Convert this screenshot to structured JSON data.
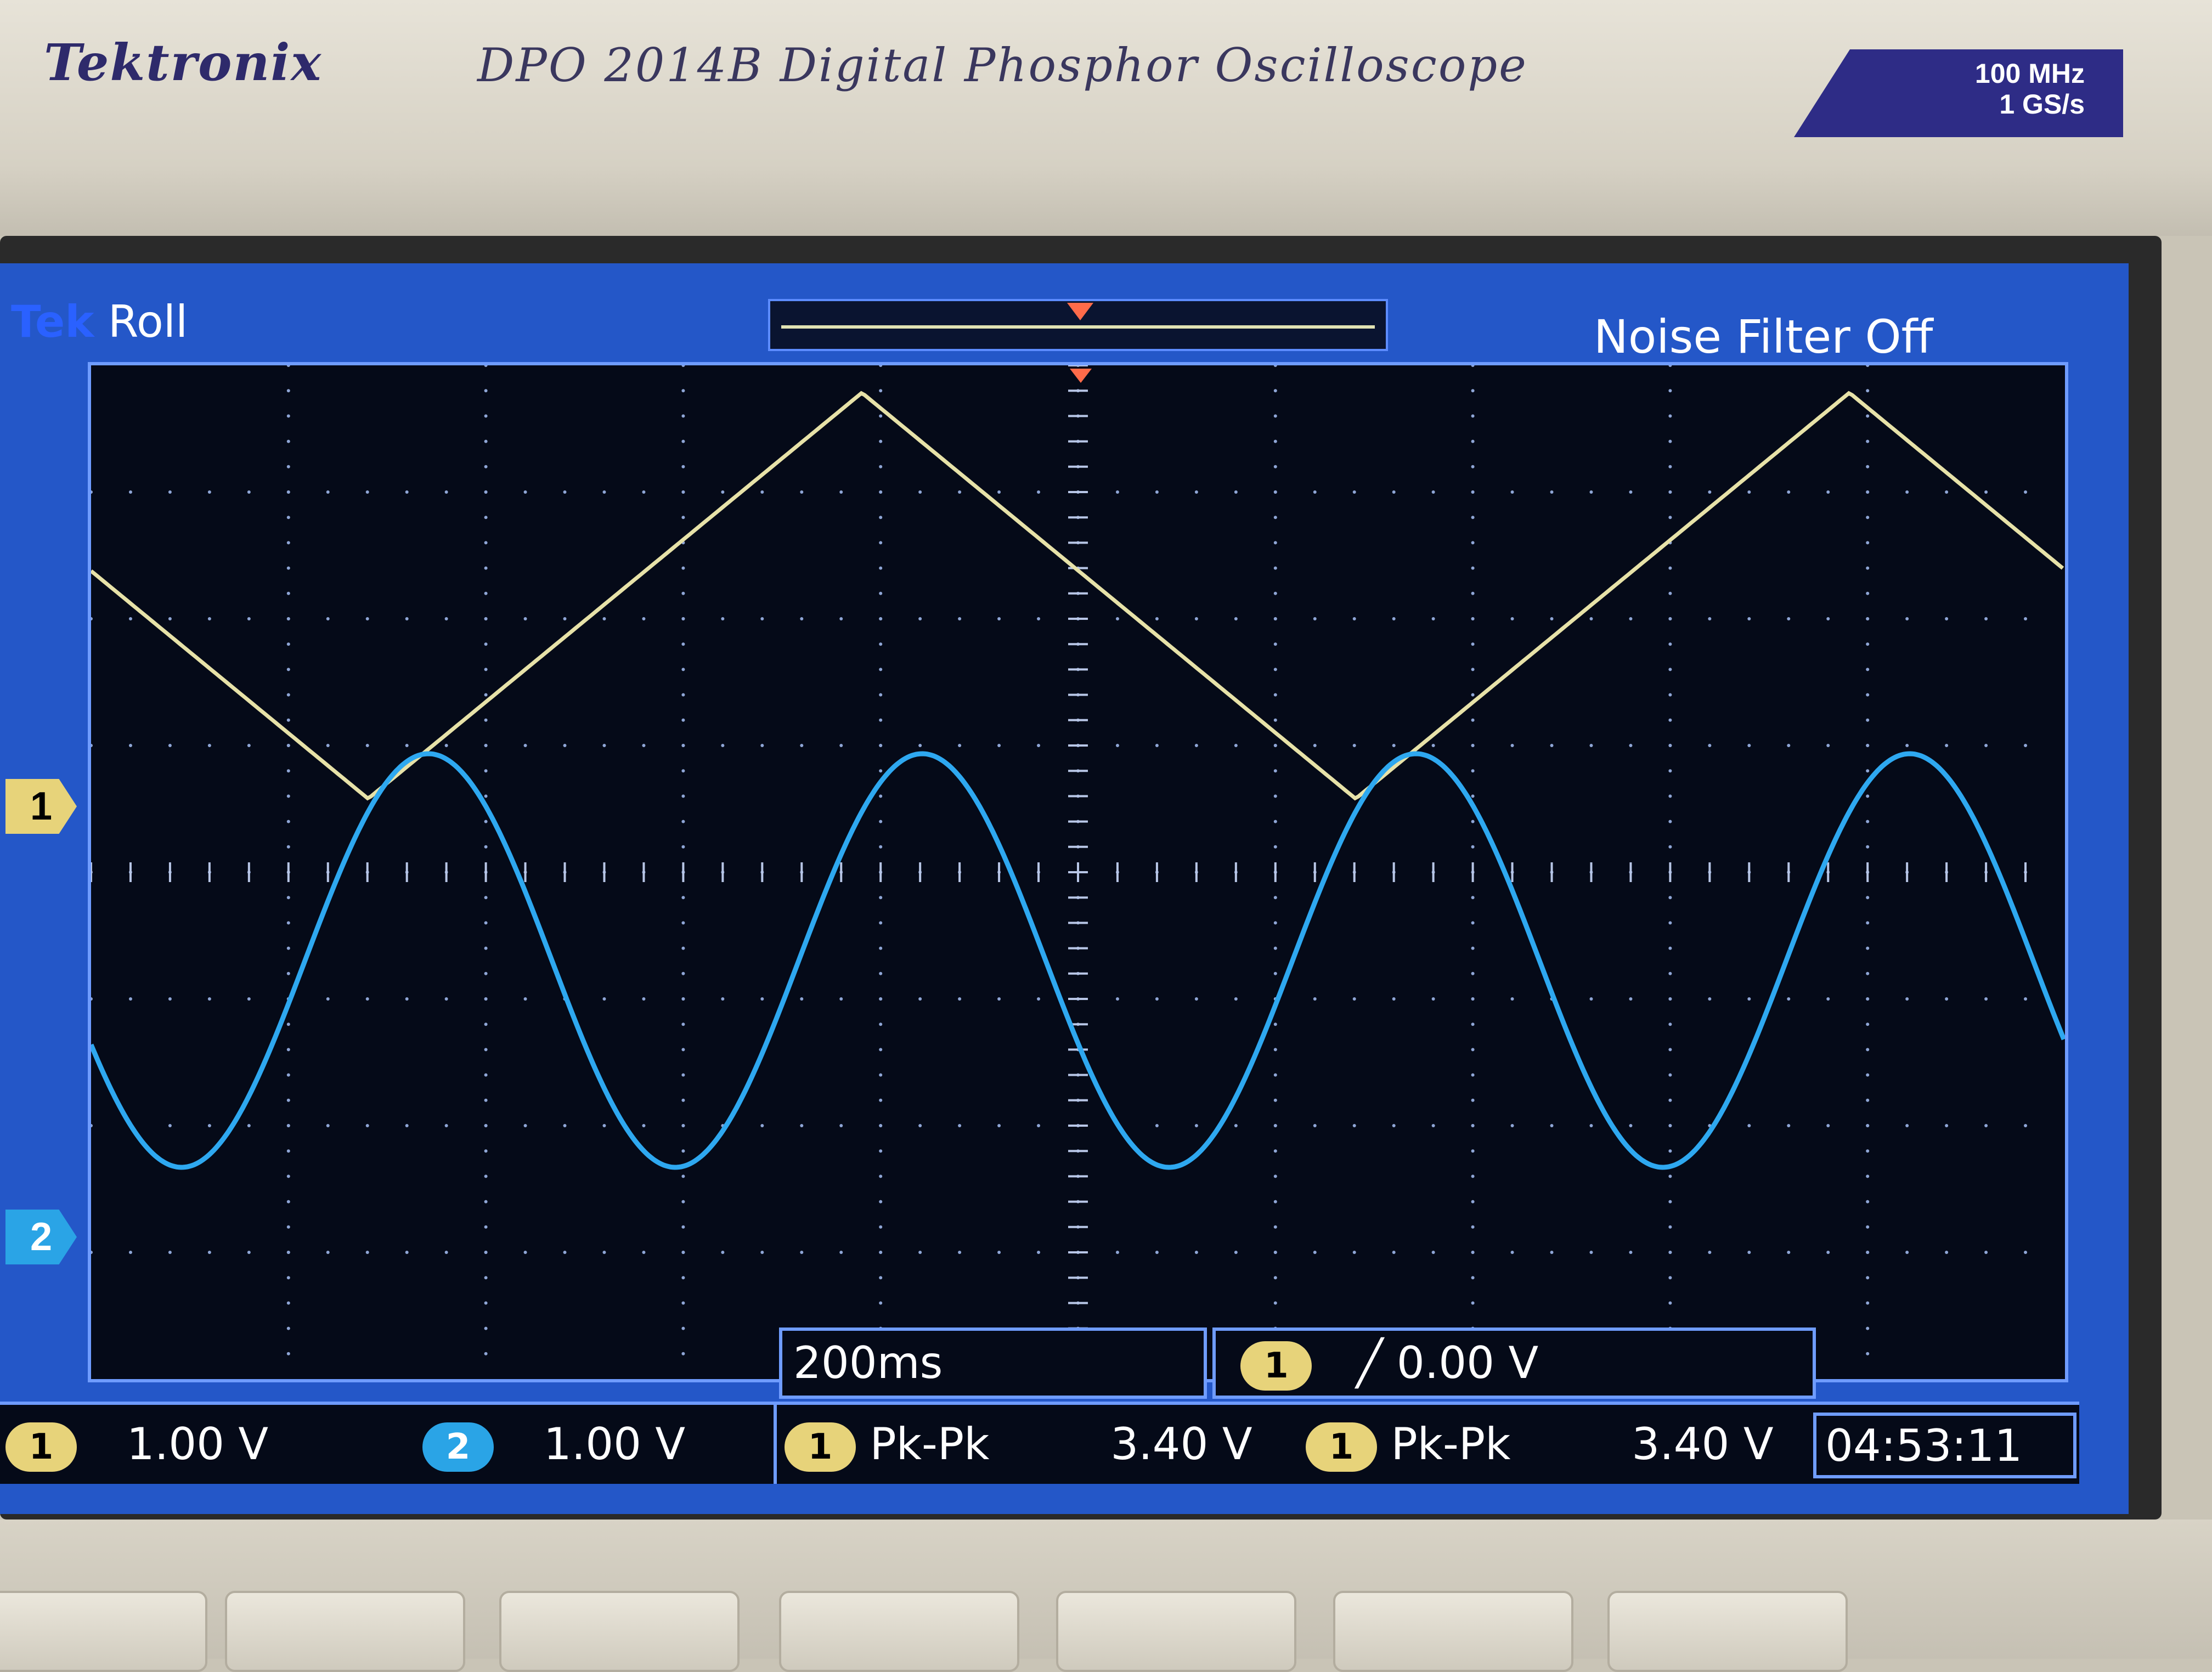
{
  "bezel": {
    "brand": "Tektronix",
    "model": "DPO 2014B Digital Phosphor Oscilloscope",
    "badge_bandwidth": "100 MHz",
    "badge_samplerate": "1 GS/s"
  },
  "header": {
    "tek_logo": "Tek",
    "mode": "Roll",
    "noise_filter": "Noise Filter Off"
  },
  "channels": {
    "ch1": {
      "label": "1",
      "scale": "1.00 V",
      "color": "#e7d37a"
    },
    "ch2": {
      "label": "2",
      "scale": "1.00 V",
      "color": "#2aa4e6"
    }
  },
  "timebase": {
    "value": "200ms"
  },
  "trigger": {
    "channel": "1",
    "level": "0.00 V",
    "slope_icon": "rising-edge"
  },
  "measurements": [
    {
      "channel": "1",
      "name": "Pk-Pk",
      "value": "3.40 V"
    },
    {
      "channel": "1",
      "name": "Pk-Pk",
      "value": "3.40 V"
    }
  ],
  "clock": "04:53:11",
  "colors": {
    "screen_bg": "#2457c8",
    "graticule_bg": "#050a18",
    "accent_border": "#6f9cff"
  }
}
